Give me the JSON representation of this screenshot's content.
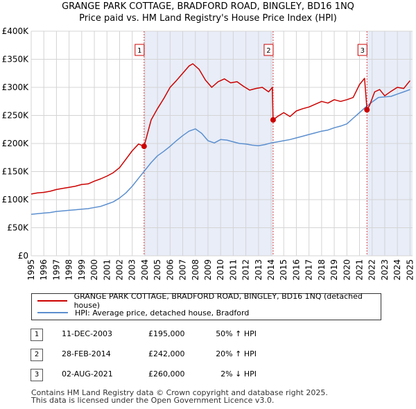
{
  "chart_data": {
    "type": "line",
    "title": "GRANGE PARK COTTAGE, BRADFORD ROAD, BINGLEY, BD16 1NQ",
    "subtitle": "Price paid vs. HM Land Registry's House Price Index (HPI)",
    "xlim": [
      1995,
      2025.2
    ],
    "ylim": [
      0,
      400000
    ],
    "y_ticks": [
      0,
      50000,
      100000,
      150000,
      200000,
      250000,
      300000,
      350000,
      400000
    ],
    "y_tick_labels": [
      "£0",
      "£50K",
      "£100K",
      "£150K",
      "£200K",
      "£250K",
      "£300K",
      "£350K",
      "£400K"
    ],
    "x_ticks": [
      1995,
      1996,
      1997,
      1998,
      1999,
      2000,
      2001,
      2002,
      2003,
      2004,
      2005,
      2006,
      2007,
      2008,
      2009,
      2010,
      2011,
      2012,
      2013,
      2014,
      2015,
      2016,
      2017,
      2018,
      2019,
      2020,
      2021,
      2022,
      2023,
      2024,
      2025
    ],
    "x_tick_labels": [
      "1995",
      "1996",
      "1997",
      "1998",
      "1999",
      "2000",
      "2001",
      "2002",
      "2003",
      "2004",
      "2005",
      "2006",
      "2007",
      "2008",
      "2009",
      "2010",
      "2011",
      "2012",
      "2013",
      "2014",
      "2015",
      "2016",
      "2017",
      "2018",
      "2019",
      "2020",
      "2021",
      "2022",
      "2023",
      "2024",
      "2025"
    ],
    "grid": true,
    "shaded_periods": [
      [
        2003.94,
        2014.16
      ],
      [
        2021.59,
        2025.2
      ]
    ],
    "series": [
      {
        "name": "GRANGE PARK COTTAGE, BRADFORD ROAD, BINGLEY, BD16 1NQ (detached house)",
        "color": "#cc0000",
        "x": [
          1995,
          1995.5,
          1996,
          1996.5,
          1997,
          1997.5,
          1998,
          1998.5,
          1999,
          1999.5,
          2000,
          2000.5,
          2001,
          2001.5,
          2002,
          2002.5,
          2003,
          2003.5,
          2003.94,
          2004.5,
          2005,
          2005.5,
          2006,
          2006.5,
          2007,
          2007.5,
          2007.8,
          2008.3,
          2008.8,
          2009.3,
          2009.8,
          2010.3,
          2010.8,
          2011.3,
          2011.8,
          2012.3,
          2012.8,
          2013.3,
          2013.8,
          2014.1,
          2014.16,
          2014.5,
          2015,
          2015.5,
          2016,
          2016.5,
          2017,
          2017.5,
          2018,
          2018.5,
          2019,
          2019.5,
          2020,
          2020.5,
          2021,
          2021.4,
          2021.59,
          2021.8,
          2022.2,
          2022.6,
          2023,
          2023.5,
          2024,
          2024.5,
          2025
        ],
        "y": [
          110000,
          112000,
          113000,
          115000,
          118000,
          120000,
          122000,
          124000,
          127000,
          128000,
          133000,
          137000,
          142000,
          148000,
          157000,
          172000,
          187000,
          199000,
          195000,
          242000,
          262000,
          280000,
          300000,
          312000,
          325000,
          338000,
          342000,
          332000,
          313000,
          300000,
          310000,
          315000,
          308000,
          310000,
          302000,
          295000,
          298000,
          300000,
          292000,
          300000,
          242000,
          248000,
          255000,
          248000,
          258000,
          262000,
          265000,
          270000,
          275000,
          272000,
          278000,
          275000,
          278000,
          282000,
          305000,
          316000,
          260000,
          268000,
          292000,
          296000,
          285000,
          293000,
          300000,
          298000,
          312000
        ]
      },
      {
        "name": "HPI: Average price, detached house, Bradford",
        "color": "#5b8fcf",
        "x": [
          1995,
          1995.5,
          1996,
          1996.5,
          1997,
          1997.5,
          1998,
          1998.5,
          1999,
          1999.5,
          2000,
          2000.5,
          2001,
          2001.5,
          2002,
          2002.5,
          2003,
          2003.5,
          2004,
          2004.5,
          2005,
          2005.5,
          2006,
          2006.5,
          2007,
          2007.5,
          2008,
          2008.5,
          2009,
          2009.5,
          2010,
          2010.5,
          2011,
          2011.5,
          2012,
          2012.5,
          2013,
          2013.5,
          2014,
          2014.5,
          2015,
          2015.5,
          2016,
          2016.5,
          2017,
          2017.5,
          2018,
          2018.5,
          2019,
          2019.5,
          2020,
          2020.5,
          2021,
          2021.5,
          2022,
          2022.5,
          2023,
          2023.5,
          2024,
          2024.5,
          2025
        ],
        "y": [
          74000,
          75000,
          76000,
          77000,
          79000,
          80000,
          81000,
          82000,
          83000,
          84000,
          86000,
          88000,
          92000,
          96000,
          103000,
          112000,
          124000,
          138000,
          152000,
          166000,
          178000,
          186000,
          195000,
          205000,
          214000,
          222000,
          226000,
          218000,
          205000,
          201000,
          207000,
          206000,
          203000,
          200000,
          199000,
          197000,
          196000,
          198000,
          201000,
          203000,
          205000,
          207000,
          210000,
          213000,
          216000,
          219000,
          222000,
          224000,
          228000,
          231000,
          235000,
          245000,
          255000,
          265000,
          274000,
          282000,
          283000,
          284000,
          288000,
          292000,
          296000
        ]
      }
    ],
    "sales": [
      {
        "id": "1",
        "x": 2003.94,
        "price": 195000
      },
      {
        "id": "2",
        "x": 2014.16,
        "price": 242000
      },
      {
        "id": "3",
        "x": 2021.59,
        "price": 260000
      }
    ]
  },
  "legend": {
    "property": "GRANGE PARK COTTAGE, BRADFORD ROAD, BINGLEY, BD16 1NQ (detached house)",
    "hpi": "HPI: Average price, detached house, Bradford"
  },
  "transactions": [
    {
      "num": "1",
      "date": "11-DEC-2003",
      "price": "£195,000",
      "hpi": "50% ↑ HPI"
    },
    {
      "num": "2",
      "date": "28-FEB-2014",
      "price": "£242,000",
      "hpi": "20% ↑ HPI"
    },
    {
      "num": "3",
      "date": "02-AUG-2021",
      "price": "£260,000",
      "hpi": "2% ↓ HPI"
    }
  ],
  "footer": {
    "line1": "Contains HM Land Registry data © Crown copyright and database right 2025.",
    "line2": "This data is licensed under the Open Government Licence v3.0."
  }
}
